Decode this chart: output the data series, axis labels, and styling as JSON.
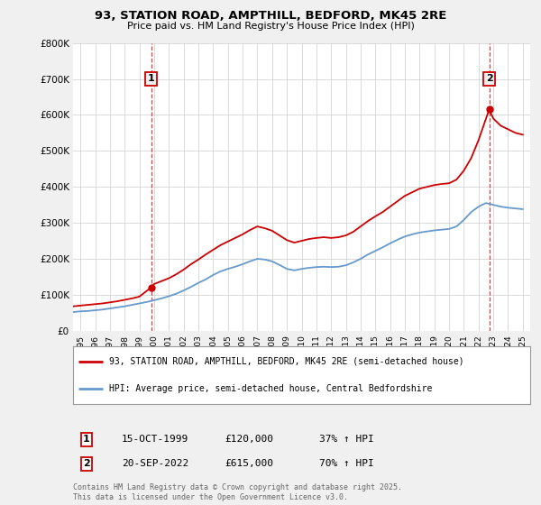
{
  "title_line1": "93, STATION ROAD, AMPTHILL, BEDFORD, MK45 2RE",
  "title_line2": "Price paid vs. HM Land Registry's House Price Index (HPI)",
  "red_label": "93, STATION ROAD, AMPTHILL, BEDFORD, MK45 2RE (semi-detached house)",
  "blue_label": "HPI: Average price, semi-detached house, Central Bedfordshire",
  "annotation1_date": "15-OCT-1999",
  "annotation1_price": "£120,000",
  "annotation1_hpi": "37% ↑ HPI",
  "annotation2_date": "20-SEP-2022",
  "annotation2_price": "£615,000",
  "annotation2_hpi": "70% ↑ HPI",
  "footer": "Contains HM Land Registry data © Crown copyright and database right 2025.\nThis data is licensed under the Open Government Licence v3.0.",
  "vline1_x": 1999.79,
  "vline2_x": 2022.72,
  "sale1_x": 1999.79,
  "sale1_y": 120000,
  "sale2_x": 2022.72,
  "sale2_y": 615000,
  "ylim": [
    0,
    800000
  ],
  "xlim": [
    1994.5,
    2025.5
  ],
  "yticks": [
    0,
    100000,
    200000,
    300000,
    400000,
    500000,
    600000,
    700000,
    800000
  ],
  "ytick_labels": [
    "£0",
    "£100K",
    "£200K",
    "£300K",
    "£400K",
    "£500K",
    "£600K",
    "£700K",
    "£800K"
  ],
  "xtick_years": [
    1995,
    1996,
    1997,
    1998,
    1999,
    2000,
    2001,
    2002,
    2003,
    2004,
    2005,
    2006,
    2007,
    2008,
    2009,
    2010,
    2011,
    2012,
    2013,
    2014,
    2015,
    2016,
    2017,
    2018,
    2019,
    2020,
    2021,
    2022,
    2023,
    2024,
    2025
  ],
  "red_color": "#cc0000",
  "blue_color": "#6699cc",
  "vline_color": "#cc0000",
  "bg_color": "#f0f0f0",
  "plot_bg": "#ffffff",
  "grid_color": "#cccccc",
  "red_data_x": [
    1994.5,
    1995.0,
    1995.5,
    1996.0,
    1996.5,
    1997.0,
    1997.5,
    1998.0,
    1998.5,
    1999.0,
    1999.79,
    2000.0,
    2000.5,
    2001.0,
    2001.5,
    2002.0,
    2002.5,
    2003.0,
    2003.5,
    2004.0,
    2004.5,
    2005.0,
    2005.5,
    2006.0,
    2006.5,
    2007.0,
    2007.5,
    2008.0,
    2008.5,
    2009.0,
    2009.5,
    2010.0,
    2010.5,
    2011.0,
    2011.5,
    2012.0,
    2012.5,
    2013.0,
    2013.5,
    2014.0,
    2014.5,
    2015.0,
    2015.5,
    2016.0,
    2016.5,
    2017.0,
    2017.5,
    2018.0,
    2018.5,
    2019.0,
    2019.5,
    2020.0,
    2020.5,
    2021.0,
    2021.5,
    2022.0,
    2022.72,
    2023.0,
    2023.5,
    2024.0,
    2024.5,
    2025.0
  ],
  "red_data_y": [
    68000,
    70000,
    72000,
    74000,
    76000,
    79000,
    82000,
    86000,
    90000,
    95000,
    120000,
    130000,
    138000,
    146000,
    157000,
    170000,
    185000,
    198000,
    212000,
    225000,
    238000,
    248000,
    258000,
    268000,
    280000,
    290000,
    285000,
    278000,
    265000,
    252000,
    245000,
    250000,
    255000,
    258000,
    260000,
    258000,
    260000,
    265000,
    275000,
    290000,
    305000,
    318000,
    330000,
    345000,
    360000,
    375000,
    385000,
    395000,
    400000,
    405000,
    408000,
    410000,
    420000,
    445000,
    480000,
    530000,
    615000,
    590000,
    570000,
    560000,
    550000,
    545000
  ],
  "blue_data_x": [
    1994.5,
    1995.0,
    1995.5,
    1996.0,
    1996.5,
    1997.0,
    1997.5,
    1998.0,
    1998.5,
    1999.0,
    1999.5,
    2000.0,
    2000.5,
    2001.0,
    2001.5,
    2002.0,
    2002.5,
    2003.0,
    2003.5,
    2004.0,
    2004.5,
    2005.0,
    2005.5,
    2006.0,
    2006.5,
    2007.0,
    2007.5,
    2008.0,
    2008.5,
    2009.0,
    2009.5,
    2010.0,
    2010.5,
    2011.0,
    2011.5,
    2012.0,
    2012.5,
    2013.0,
    2013.5,
    2014.0,
    2014.5,
    2015.0,
    2015.5,
    2016.0,
    2016.5,
    2017.0,
    2017.5,
    2018.0,
    2018.5,
    2019.0,
    2019.5,
    2020.0,
    2020.5,
    2021.0,
    2021.5,
    2022.0,
    2022.5,
    2023.0,
    2023.5,
    2024.0,
    2024.5,
    2025.0
  ],
  "blue_data_y": [
    52000,
    54000,
    55000,
    57000,
    59000,
    62000,
    65000,
    68000,
    72000,
    76000,
    80000,
    85000,
    90000,
    96000,
    103000,
    112000,
    122000,
    133000,
    143000,
    155000,
    165000,
    172000,
    178000,
    185000,
    193000,
    200000,
    198000,
    193000,
    183000,
    172000,
    168000,
    172000,
    175000,
    177000,
    178000,
    177000,
    178000,
    182000,
    190000,
    200000,
    212000,
    222000,
    232000,
    243000,
    253000,
    262000,
    268000,
    273000,
    276000,
    279000,
    281000,
    283000,
    290000,
    308000,
    330000,
    345000,
    355000,
    350000,
    345000,
    342000,
    340000,
    338000
  ]
}
